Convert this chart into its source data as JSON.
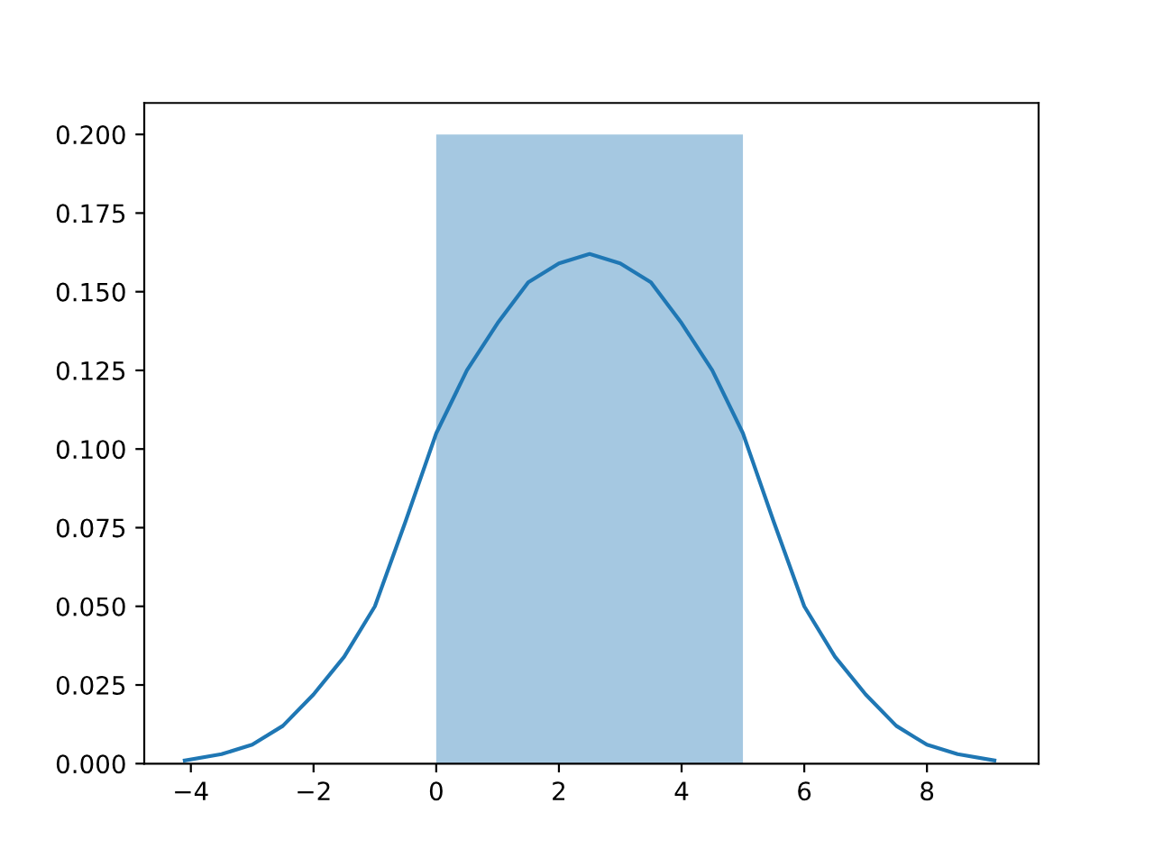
{
  "chart_data": {
    "type": "histogram",
    "xlim": [
      -4.76,
      9.82
    ],
    "xticks": [
      {
        "value": -4,
        "label": "−4"
      },
      {
        "value": -2,
        "label": "−2"
      },
      0,
      2,
      4,
      6,
      8
    ],
    "ylim": [
      0,
      0.21
    ],
    "yticks": [
      {
        "value": 0,
        "label": "0.000"
      },
      {
        "value": 0.025,
        "label": "0.025"
      },
      {
        "value": 0.05,
        "label": "0.050"
      },
      {
        "value": 0.075,
        "label": "0.075"
      },
      {
        "value": 0.1,
        "label": "0.100"
      },
      {
        "value": 0.125,
        "label": "0.125"
      },
      {
        "value": 0.15,
        "label": "0.150"
      },
      {
        "value": 0.175,
        "label": "0.175"
      },
      {
        "value": 0.2,
        "label": "0.200"
      }
    ],
    "series": [
      {
        "type": "histogram",
        "bins": [
          0,
          5
        ],
        "values": [
          0.2
        ],
        "color": "#a5c8e1"
      },
      {
        "type": "line",
        "color": "#1f77b4",
        "x": [
          -4.1,
          -3.5,
          -3,
          -2.5,
          -2,
          -1.5,
          -1,
          -0.5,
          0,
          0.5,
          1,
          1.5,
          2,
          2.5,
          3,
          3.5,
          4,
          4.5,
          5,
          5.5,
          6,
          6.5,
          7,
          7.5,
          8,
          8.5,
          9.1
        ],
        "values": [
          0.001,
          0.003,
          0.006,
          0.012,
          0.022,
          0.034,
          0.05,
          0.077,
          0.105,
          0.125,
          0.14,
          0.153,
          0.159,
          0.162,
          0.159,
          0.153,
          0.14,
          0.125,
          0.105,
          0.077,
          0.05,
          0.034,
          0.022,
          0.012,
          0.006,
          0.003,
          0.001
        ]
      }
    ]
  }
}
